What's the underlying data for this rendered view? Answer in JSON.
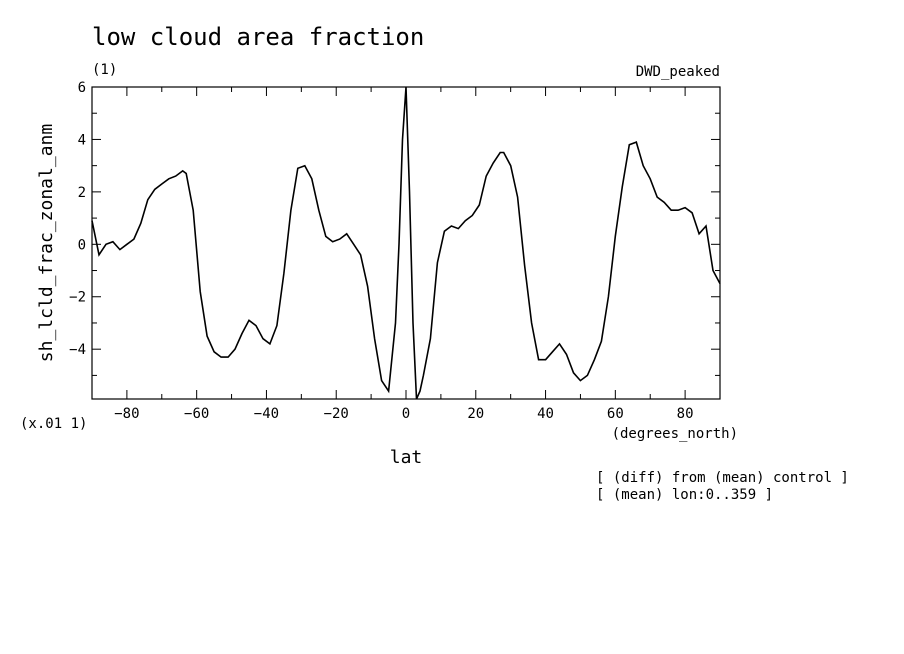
{
  "chart_data": {
    "type": "line",
    "title": "low cloud area fraction",
    "subtitle": "(1)",
    "label_right": "DWD_peaked",
    "xlabel": "lat",
    "xunits": "(degrees_north)",
    "ylabel": "sh_lcld_frac_zonal_anm",
    "yscale_note": "(x.01 1)",
    "notes": [
      "[ (diff) from (mean) control ]",
      "[ (mean) lon:0..359 ]"
    ],
    "xlim": [
      -90,
      90
    ],
    "ylim": [
      -5.9,
      6
    ],
    "xticks": [
      -80,
      -60,
      -40,
      -20,
      0,
      20,
      40,
      60,
      80
    ],
    "xtick_labels": [
      "−80",
      "−60",
      "−40",
      "−20",
      "0",
      "20",
      "40",
      "60",
      "80"
    ],
    "yticks": [
      -4,
      -2,
      0,
      2,
      4,
      6
    ],
    "ytick_labels": [
      "−4",
      "−2",
      "0",
      "2",
      "4",
      "6"
    ],
    "grid": false,
    "series": [
      {
        "x": [
          -90,
          -88,
          -86,
          -84,
          -82,
          -80,
          -78,
          -76,
          -74,
          -72,
          -70,
          -68,
          -66,
          -64,
          -63,
          -61,
          -59,
          -57,
          -55,
          -53,
          -51,
          -49,
          -47,
          -45,
          -43,
          -41,
          -39,
          -37,
          -35,
          -33,
          -31,
          -29,
          -27,
          -25,
          -23,
          -21,
          -19,
          -17,
          -15,
          -13,
          -11,
          -9,
          -7,
          -5,
          -3,
          -2,
          -1,
          0,
          1,
          2,
          3,
          4,
          5,
          7,
          9,
          11,
          13,
          15,
          17,
          19,
          21,
          23,
          25,
          27,
          28,
          30,
          32,
          34,
          36,
          38,
          40,
          42,
          44,
          46,
          48,
          50,
          52,
          54,
          56,
          58,
          60,
          62,
          64,
          66,
          68,
          70,
          72,
          74,
          76,
          78,
          80,
          82,
          84,
          86,
          88,
          90
        ],
        "y": [
          0.9,
          -0.4,
          0.0,
          0.1,
          -0.2,
          0.0,
          0.2,
          0.8,
          1.7,
          2.1,
          2.3,
          2.5,
          2.6,
          2.8,
          2.7,
          1.3,
          -1.8,
          -3.5,
          -4.1,
          -4.3,
          -4.3,
          -4.0,
          -3.4,
          -2.9,
          -3.1,
          -3.6,
          -3.8,
          -3.1,
          -1.1,
          1.3,
          2.9,
          3.0,
          2.5,
          1.3,
          0.3,
          0.1,
          0.2,
          0.4,
          0.0,
          -0.4,
          -1.6,
          -3.6,
          -5.2,
          -5.6,
          -3.0,
          0.0,
          4.0,
          6.0,
          2.0,
          -3.0,
          -5.9,
          -5.6,
          -5.0,
          -3.6,
          -0.7,
          0.5,
          0.7,
          0.6,
          0.9,
          1.1,
          1.5,
          2.6,
          3.1,
          3.5,
          3.5,
          3.0,
          1.8,
          -0.8,
          -3.0,
          -4.4,
          -4.4,
          -4.1,
          -3.8,
          -4.2,
          -4.9,
          -5.2,
          -5.0,
          -4.4,
          -3.7,
          -2.0,
          0.3,
          2.2,
          3.8,
          3.9,
          3.0,
          2.5,
          1.8,
          1.6,
          1.3,
          1.3,
          1.4,
          1.2,
          0.4,
          0.7,
          -1.0,
          -1.5
        ]
      }
    ]
  }
}
